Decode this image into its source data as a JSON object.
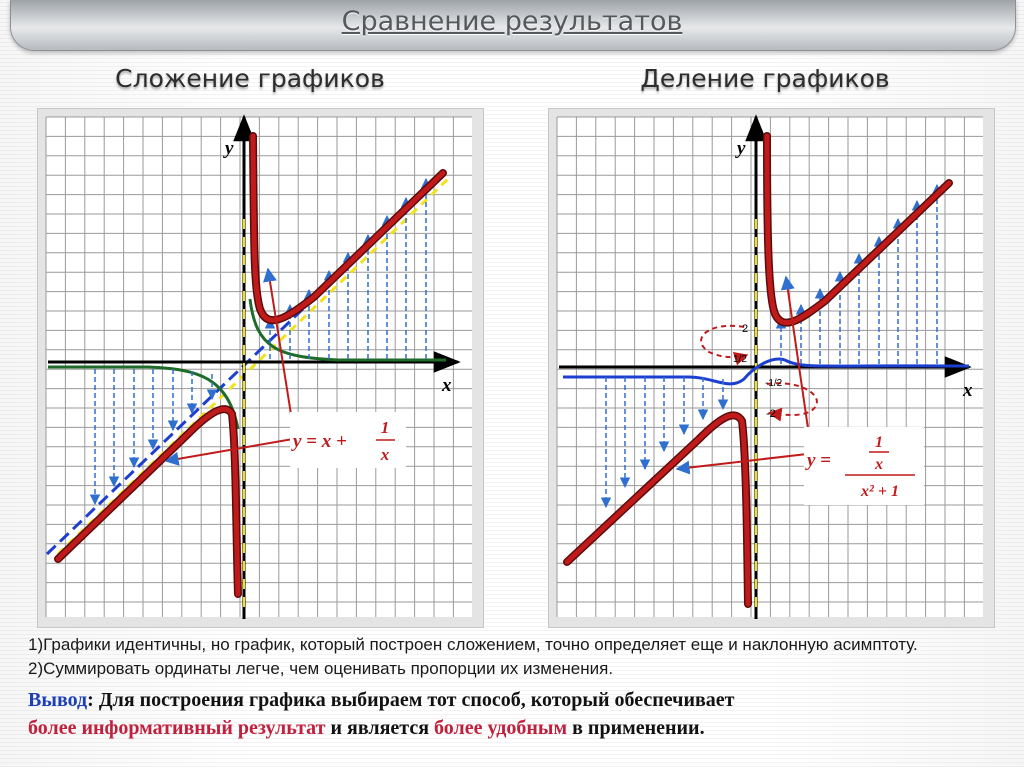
{
  "title": "Сравнение результатов",
  "left": {
    "heading": "Сложение графиков",
    "axis_x": "x",
    "axis_y": "y",
    "formula": {
      "lhs": "y = x +",
      "num": "1",
      "den": "x"
    }
  },
  "right": {
    "heading": "Деление графиков",
    "axis_x": "x",
    "axis_y": "y",
    "ticks": [
      "2",
      "1/2",
      "-1/2",
      "-2"
    ],
    "formula": {
      "lhs": "y =",
      "num": "1",
      "num_inner": "x",
      "den": "x² + 1"
    }
  },
  "observation": "1)Графики идентичны, но график, который построен сложением, точно определяет еще и наклонную асимптоту. 2)Суммировать ординаты легче, чем оценивать пропорции их изменения.",
  "conclusion": {
    "label": "Вывод",
    "colon": ": ",
    "text1": "Для построения графика выбираем тот способ, который обеспечивает",
    "red1": "более информативный результат",
    "mid": " и является ",
    "red2": "более удобным",
    "end": " в применении."
  },
  "colors": {
    "curve_red": "#c01a1a",
    "curve_outline": "#5a0c0c",
    "asymptote_blue": "#1d3fd0",
    "asymptote_yellow": "#f2e21c",
    "hyperbola_green": "#1f6b2a",
    "arrow_blue": "#2f6fd0",
    "accent_blue": "#1c3fb5",
    "accent_red": "#c0203c"
  }
}
